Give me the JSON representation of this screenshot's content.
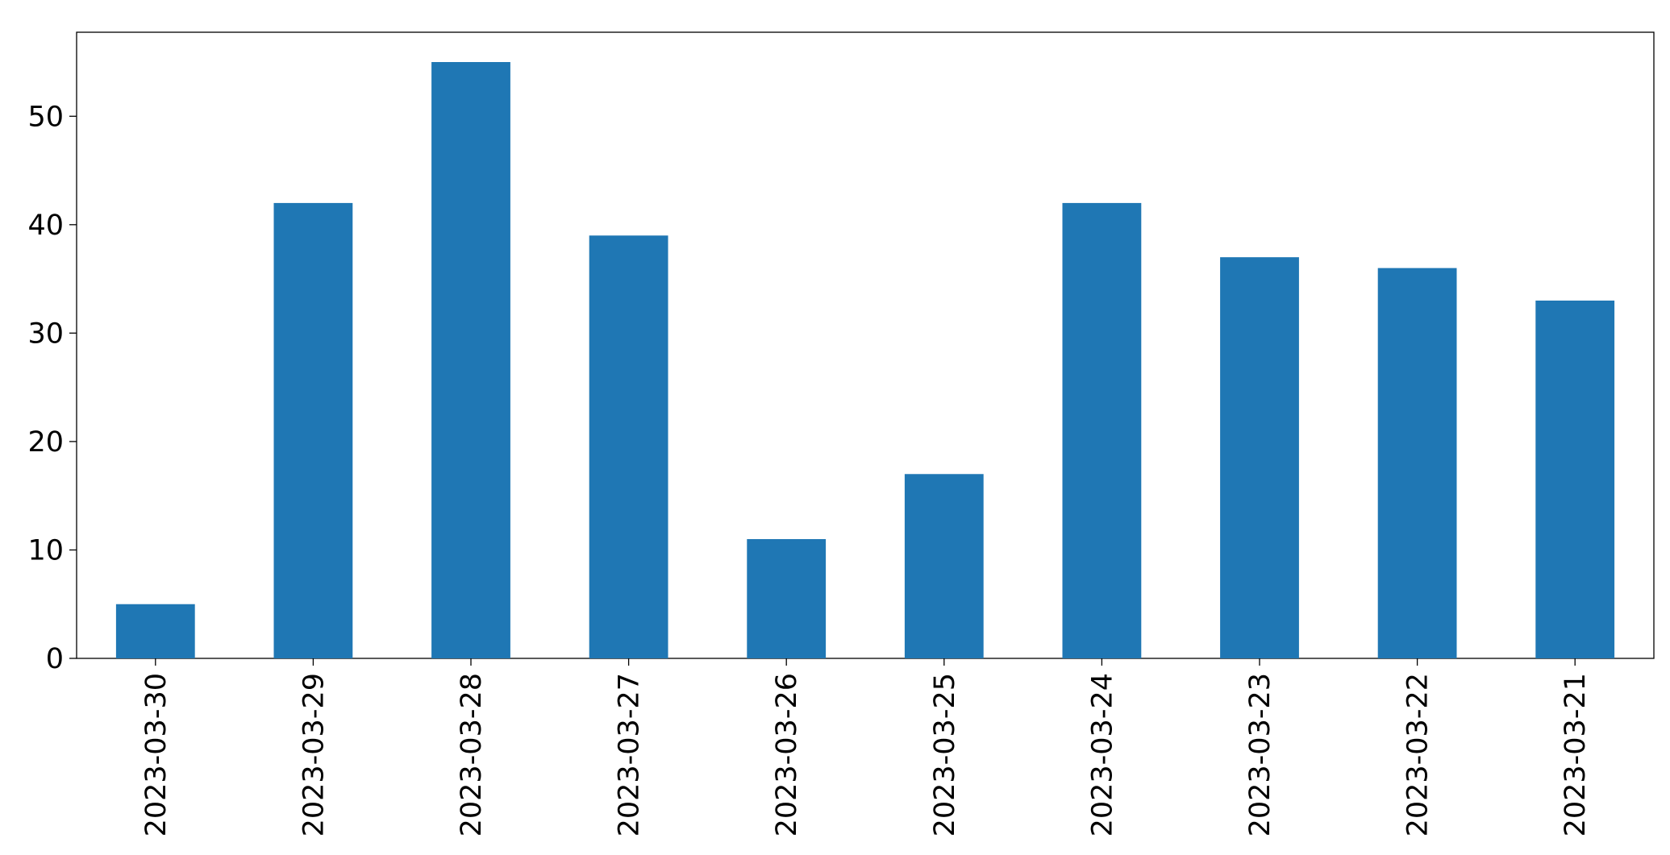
{
  "chart_data": {
    "type": "bar",
    "categories": [
      "2023-03-30",
      "2023-03-29",
      "2023-03-28",
      "2023-03-27",
      "2023-03-26",
      "2023-03-25",
      "2023-03-24",
      "2023-03-23",
      "2023-03-22",
      "2023-03-21"
    ],
    "values": [
      5,
      42,
      55,
      39,
      11,
      17,
      42,
      37,
      36,
      33
    ],
    "color": "#1f77b4",
    "ylim": [
      0,
      57.75
    ],
    "yticks": [
      0,
      10,
      20,
      30,
      40,
      50
    ],
    "grid": false
  }
}
